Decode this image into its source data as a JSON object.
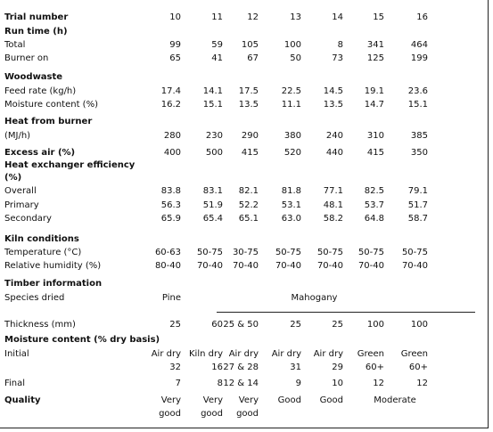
{
  "table": {
    "rows": [
      {
        "label": "Trial number",
        "heading": true,
        "cells": [
          "10",
          "11",
          "12",
          "13",
          "14",
          "15",
          "16"
        ]
      },
      {
        "label": "Run time (h)",
        "heading": true,
        "cells": []
      },
      {
        "label": "Total",
        "cells": [
          "99",
          "59",
          "105",
          "100",
          "8",
          "341",
          "464"
        ]
      },
      {
        "label": "Burner on",
        "cells": [
          "65",
          "41",
          "67",
          "50",
          "73",
          "125",
          "199"
        ]
      },
      {
        "label": "Woodwaste",
        "heading": true,
        "cells": []
      },
      {
        "label": "Feed rate (kg/h)",
        "cells": [
          "17.4",
          "14.1",
          "17.5",
          "22.5",
          "14.5",
          "19.1",
          "23.6"
        ]
      },
      {
        "label": "Moisture content (%)",
        "cells": [
          "16.2",
          "15.1",
          "13.5",
          "11.1",
          "13.5",
          "14.7",
          "15.1"
        ]
      },
      {
        "label": "Heat from burner",
        "heading": true,
        "cells": []
      },
      {
        "label": "(MJ/h)",
        "cells": [
          "280",
          "230",
          "290",
          "380",
          "240",
          "310",
          "385"
        ]
      },
      {
        "label": "Excess air (%)",
        "heading": true,
        "cells": [
          "400",
          "500",
          "415",
          "520",
          "440",
          "415",
          "350"
        ]
      },
      {
        "label": "Heat exchanger efficiency",
        "heading": true,
        "cells": []
      },
      {
        "label": "(%)",
        "heading": true,
        "cells": []
      },
      {
        "label": "Overall",
        "cells": [
          "83.8",
          "83.1",
          "82.1",
          "81.8",
          "77.1",
          "82.5",
          "79.1"
        ]
      },
      {
        "label": "Primary",
        "cells": [
          "56.3",
          "51.9",
          "52.2",
          "53.1",
          "48.1",
          "53.7",
          "51.7"
        ]
      },
      {
        "label": "Secondary",
        "cells": [
          "65.9",
          "65.4",
          "65.1",
          "63.0",
          "58.2",
          "64.8",
          "58.7"
        ]
      },
      {
        "label": "Kiln conditions",
        "heading": true,
        "cells": []
      },
      {
        "label": "Temperature (°C)",
        "cells": [
          "60-63",
          "50-75",
          "30-75",
          "50-75",
          "50-75",
          "50-75",
          "50-75"
        ]
      },
      {
        "label": "Relative humidity (%)",
        "cells": [
          "80-40",
          "70-40",
          "70-40",
          "70-40",
          "70-40",
          "70-40",
          "70-40"
        ]
      },
      {
        "label": "Timber information",
        "heading": true,
        "cells": []
      },
      {
        "label": "Species dried",
        "cells": [
          "Pine",
          {
            "text": "Mahogany",
            "span": 6
          }
        ]
      },
      {
        "label": "Thickness (mm)",
        "cells": [
          "25",
          "60",
          "25 & 50",
          "25",
          "25",
          "100",
          "100"
        ]
      },
      {
        "label": "Moisture content (% dry basis)",
        "heading": true,
        "cells": []
      },
      {
        "label": "Initial",
        "cells": [
          [
            "Air dry",
            "32"
          ],
          [
            "Kiln dry",
            "16"
          ],
          [
            "Air dry",
            "27 & 28"
          ],
          [
            "Air dry",
            "31"
          ],
          [
            "Air dry",
            "29"
          ],
          [
            "Green",
            "60+"
          ],
          [
            "Green",
            "60+"
          ]
        ]
      },
      {
        "label": "Final",
        "cells": [
          "7",
          "8",
          "12 & 14",
          "9",
          "10",
          "12",
          "12"
        ]
      },
      {
        "label": "Quality",
        "heading": true,
        "cells": [
          [
            "Very",
            "good"
          ],
          [
            "Very",
            "good"
          ],
          [
            "Very",
            "good"
          ],
          "Good",
          "Good",
          {
            "text": "Moderate",
            "span": 2
          }
        ]
      }
    ]
  }
}
